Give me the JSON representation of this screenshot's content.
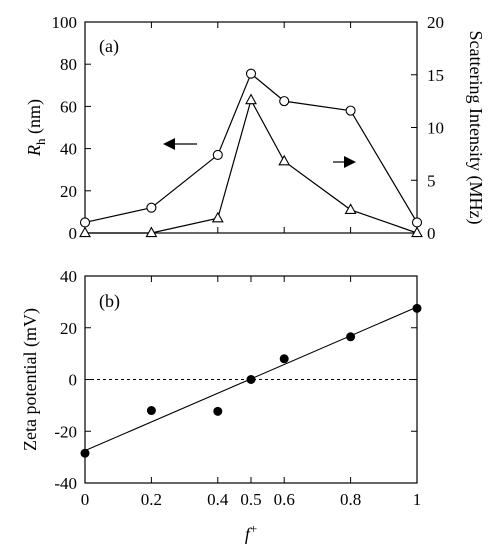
{
  "chart_data": [
    {
      "type": "line",
      "panel_label": "(a)",
      "x": [
        0,
        0.2,
        0.4,
        0.5,
        0.6,
        0.8,
        1
      ],
      "xlim": [
        0,
        1
      ],
      "x_ticks": [
        0,
        0.2,
        0.4,
        0.6,
        0.8,
        1
      ],
      "ylabel_left": {
        "main": "R",
        "sub": "h",
        "unit": " (nm)"
      },
      "ylim_left": [
        0,
        100
      ],
      "yticks_left": [
        0,
        20,
        40,
        60,
        80,
        100
      ],
      "ylabel_right": "Scattering Intensity (MHz)",
      "ylim_right": [
        0,
        20
      ],
      "yticks_right": [
        0,
        5,
        10,
        15,
        20
      ],
      "grid": false,
      "series": [
        {
          "axis": "left",
          "marker": "circle-open",
          "values": [
            5,
            12,
            37,
            75.5,
            62.5,
            58,
            5
          ]
        },
        {
          "axis": "right",
          "marker": "triangle-open",
          "values": [
            0,
            0,
            1.4,
            12.6,
            6.8,
            2.2,
            0
          ]
        }
      ],
      "annotations": [
        {
          "type": "arrow",
          "direction": "left",
          "points_to": "left-axis series"
        },
        {
          "type": "arrow",
          "direction": "right",
          "points_to": "right-axis series"
        }
      ]
    },
    {
      "type": "scatter",
      "panel_label": "(b)",
      "x": [
        0,
        0.2,
        0.4,
        0.5,
        0.6,
        0.8,
        1
      ],
      "xlim": [
        0,
        1
      ],
      "x_ticks": [
        0,
        0.2,
        0.4,
        0.5,
        0.6,
        0.8,
        1
      ],
      "x_tick_labels": [
        "0",
        "0.2",
        "0.4",
        "0.5",
        "0.6",
        "0.8",
        "1"
      ],
      "xlabel": {
        "main": "f",
        "sup": "+"
      },
      "ylabel": "Zeta potential (mV)",
      "ylim": [
        -40,
        40
      ],
      "yticks": [
        -40,
        -20,
        0,
        20,
        40
      ],
      "grid": false,
      "series": [
        {
          "marker": "circle-filled",
          "values": [
            -28.5,
            -12,
            -12.3,
            0,
            8,
            16.5,
            27.5
          ]
        }
      ],
      "fit_line": {
        "x": [
          0,
          1
        ],
        "y": [
          -27.5,
          28
        ]
      },
      "reference_line": {
        "y": 0,
        "style": "dashed"
      }
    }
  ]
}
